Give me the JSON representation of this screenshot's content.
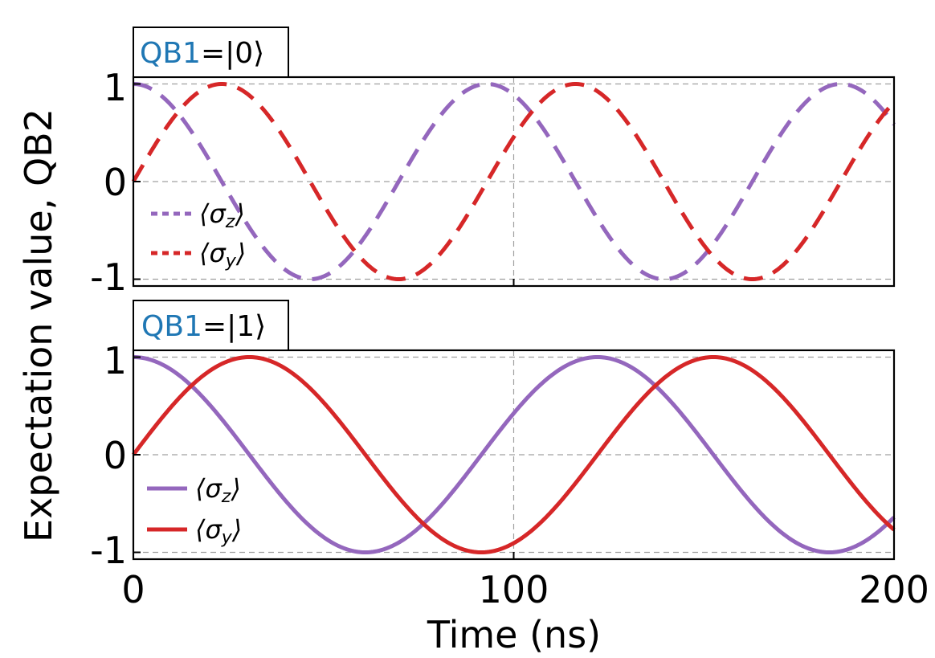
{
  "colors": {
    "sigma_z": "#9467bd",
    "sigma_y": "#d62728",
    "qb_label": "#1f77b4",
    "grid": "#a0a0a0"
  },
  "chart_data": [
    {
      "type": "line",
      "panel": "top",
      "tag": {
        "qb": "QB1",
        "state": "=|0⟩"
      },
      "line_style": "dashed",
      "xlim": [
        0,
        200
      ],
      "ylim": [
        -1.07,
        1.07
      ],
      "yticks": [
        -1,
        0,
        1
      ],
      "ytick_labels": [
        "-1",
        "0",
        "1"
      ],
      "period_ns": 93,
      "series": [
        {
          "name": "σz",
          "legend_label": "⟨σz⟩",
          "color_key": "sigma_z",
          "function": "cos",
          "amplitude": 1.0,
          "key_points": [
            [
              0,
              1.0
            ],
            [
              46.5,
              -1.0
            ],
            [
              93,
              1.0
            ],
            [
              139.5,
              -1.0
            ],
            [
              186,
              1.0
            ],
            [
              200,
              0.6
            ]
          ]
        },
        {
          "name": "σy",
          "legend_label": "⟨σy⟩",
          "color_key": "sigma_y",
          "function": "sin",
          "amplitude": 1.0,
          "key_points": [
            [
              0,
              0.0
            ],
            [
              23.25,
              1.0
            ],
            [
              69.75,
              -1.0
            ],
            [
              116.25,
              1.0
            ],
            [
              162.75,
              -1.0
            ],
            [
              200,
              0.8
            ]
          ]
        }
      ],
      "legend": [
        {
          "label_main": "⟨σ",
          "label_sub": "z",
          "label_end": "⟩"
        },
        {
          "label_main": "⟨σ",
          "label_sub": "y",
          "label_end": "⟩"
        }
      ]
    },
    {
      "type": "line",
      "panel": "bottom",
      "tag": {
        "qb": "QB1",
        "state": "=|1⟩"
      },
      "line_style": "solid",
      "xlim": [
        0,
        200
      ],
      "ylim": [
        -1.07,
        1.07
      ],
      "yticks": [
        -1,
        0,
        1
      ],
      "ytick_labels": [
        "-1",
        "0",
        "1"
      ],
      "period_ns": 122,
      "series": [
        {
          "name": "σz",
          "legend_label": "⟨σz⟩",
          "color_key": "sigma_z",
          "function": "cos",
          "amplitude": 1.0,
          "key_points": [
            [
              0,
              1.0
            ],
            [
              61,
              -1.0
            ],
            [
              122,
              1.0
            ],
            [
              183,
              -1.0
            ],
            [
              200,
              -0.6
            ]
          ]
        },
        {
          "name": "σy",
          "legend_label": "⟨σy⟩",
          "color_key": "sigma_y",
          "function": "sin",
          "amplitude": 1.0,
          "key_points": [
            [
              0,
              0.0
            ],
            [
              30.5,
              1.0
            ],
            [
              91.5,
              -1.0
            ],
            [
              152.5,
              1.0
            ],
            [
              200,
              -0.8
            ]
          ]
        }
      ],
      "legend": [
        {
          "label_main": "⟨σ",
          "label_sub": "z",
          "label_end": "⟩"
        },
        {
          "label_main": "⟨σ",
          "label_sub": "y",
          "label_end": "⟩"
        }
      ]
    }
  ],
  "axes": {
    "xlabel": "Time (ns)",
    "ylabel": "Expectation value, QB2",
    "xticks": [
      0,
      100,
      200
    ],
    "xtick_labels": [
      "0",
      "100",
      "200"
    ]
  }
}
